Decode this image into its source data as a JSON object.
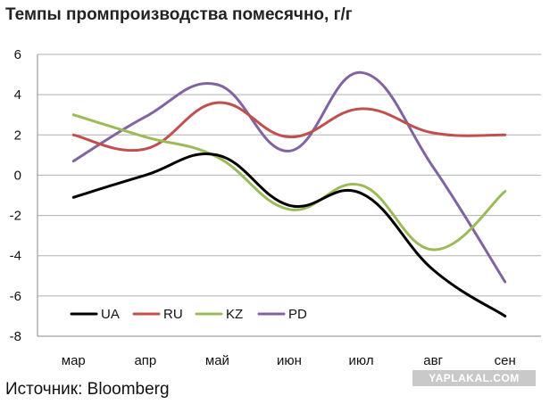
{
  "chart_data": {
    "type": "line",
    "title": "Темпы промпроизводства помесячно, г/г",
    "categories": [
      "мар",
      "апр",
      "май",
      "июн",
      "июл",
      "авг",
      "сен"
    ],
    "ylim": [
      -8,
      6
    ],
    "yticks": [
      -8,
      -6,
      -4,
      -2,
      0,
      2,
      4,
      6
    ],
    "grid": true,
    "legend": "bottom-left",
    "series": [
      {
        "name": "UA",
        "color": "#000000",
        "values": [
          -1.1,
          0.0,
          1.0,
          -1.5,
          -0.9,
          -4.7,
          -7.0
        ]
      },
      {
        "name": "RU",
        "color": "#c0504d",
        "values": [
          2.0,
          1.3,
          3.6,
          1.9,
          3.3,
          2.1,
          2.0
        ]
      },
      {
        "name": "KZ",
        "color": "#9bbb59",
        "values": [
          3.0,
          1.9,
          0.9,
          -1.7,
          -0.5,
          -3.7,
          -0.8
        ]
      },
      {
        "name": "PD",
        "color": "#8064a2",
        "values": [
          0.7,
          2.9,
          4.5,
          1.2,
          5.1,
          0.4,
          -5.3
        ]
      }
    ]
  },
  "source": "Источник: Bloomberg",
  "watermark": "YAPLAKAL.COM"
}
